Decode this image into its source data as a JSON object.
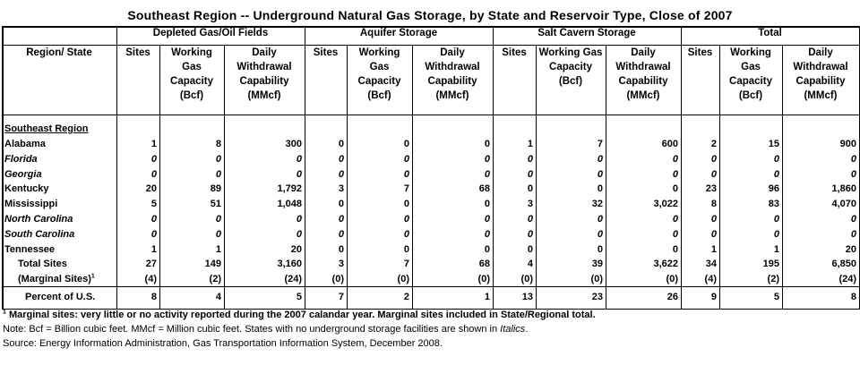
{
  "title": "Southeast Region -- Underground Natural Gas Storage, by State and Reservoir Type, Close of 2007",
  "groups": [
    "Depleted Gas/Oil Fields",
    "Aquifer Storage",
    "Salt Cavern Storage",
    "Total"
  ],
  "col_region": "Region/ State",
  "subcols": {
    "sites": "Sites",
    "working": "Working Gas Capacity (Bcf)",
    "daily": "Daily Withdrawal Capability (MMcf)"
  },
  "region_heading": "Southeast Region",
  "rows": [
    {
      "name": "Alabama",
      "italic": false,
      "vals": [
        "1",
        "8",
        "300",
        "0",
        "0",
        "0",
        "1",
        "7",
        "600",
        "2",
        "15",
        "900"
      ]
    },
    {
      "name": "Florida",
      "italic": true,
      "vals": [
        "0",
        "0",
        "0",
        "0",
        "0",
        "0",
        "0",
        "0",
        "0",
        "0",
        "0",
        "0"
      ]
    },
    {
      "name": "Georgia",
      "italic": true,
      "vals": [
        "0",
        "0",
        "0",
        "0",
        "0",
        "0",
        "0",
        "0",
        "0",
        "0",
        "0",
        "0"
      ]
    },
    {
      "name": "Kentucky",
      "italic": false,
      "vals": [
        "20",
        "89",
        "1,792",
        "3",
        "7",
        "68",
        "0",
        "0",
        "0",
        "23",
        "96",
        "1,860"
      ]
    },
    {
      "name": "Mississippi",
      "italic": false,
      "vals": [
        "5",
        "51",
        "1,048",
        "0",
        "0",
        "0",
        "3",
        "32",
        "3,022",
        "8",
        "83",
        "4,070"
      ]
    },
    {
      "name": "North Carolina",
      "italic": true,
      "vals": [
        "0",
        "0",
        "0",
        "0",
        "0",
        "0",
        "0",
        "0",
        "0",
        "0",
        "0",
        "0"
      ]
    },
    {
      "name": "South Carolina",
      "italic": true,
      "vals": [
        "0",
        "0",
        "0",
        "0",
        "0",
        "0",
        "0",
        "0",
        "0",
        "0",
        "0",
        "0"
      ]
    },
    {
      "name": "Tennessee",
      "italic": false,
      "vals": [
        "1",
        "1",
        "20",
        "0",
        "0",
        "0",
        "0",
        "0",
        "0",
        "1",
        "1",
        "20"
      ]
    },
    {
      "name": "Total Sites",
      "italic": false,
      "indent": true,
      "vals": [
        "27",
        "149",
        "3,160",
        "3",
        "7",
        "68",
        "4",
        "39",
        "3,622",
        "34",
        "195",
        "6,850"
      ]
    },
    {
      "name": "(Marginal Sites)",
      "sup": "1",
      "italic": false,
      "indent": true,
      "vals": [
        "(4)",
        "(2)",
        "(24)",
        "(0)",
        "(0)",
        "(0)",
        "(0)",
        "(0)",
        "(0)",
        "(4)",
        "(2)",
        "(24)"
      ]
    }
  ],
  "percent_row": {
    "name": "Percent of U.S.",
    "vals": [
      "8",
      "4",
      "5",
      "7",
      "2",
      "1",
      "13",
      "23",
      "26",
      "9",
      "5",
      "8"
    ]
  },
  "footnotes": {
    "note1_sup": "1",
    "note1": "Marginal sites: very little or no activity reported during the 2007 calandar year. Marginal sites included in State/Regional total.",
    "note2_prefix": "Note: Bcf = Billion cubic feet.  MMcf = Million cubic feet. States with no underground storage facilities are shown in ",
    "note2_italic": "Italics",
    "note2_suffix": ".",
    "source": "Source:  Energy Information Administration, Gas Transportation Information System, December 2008."
  }
}
